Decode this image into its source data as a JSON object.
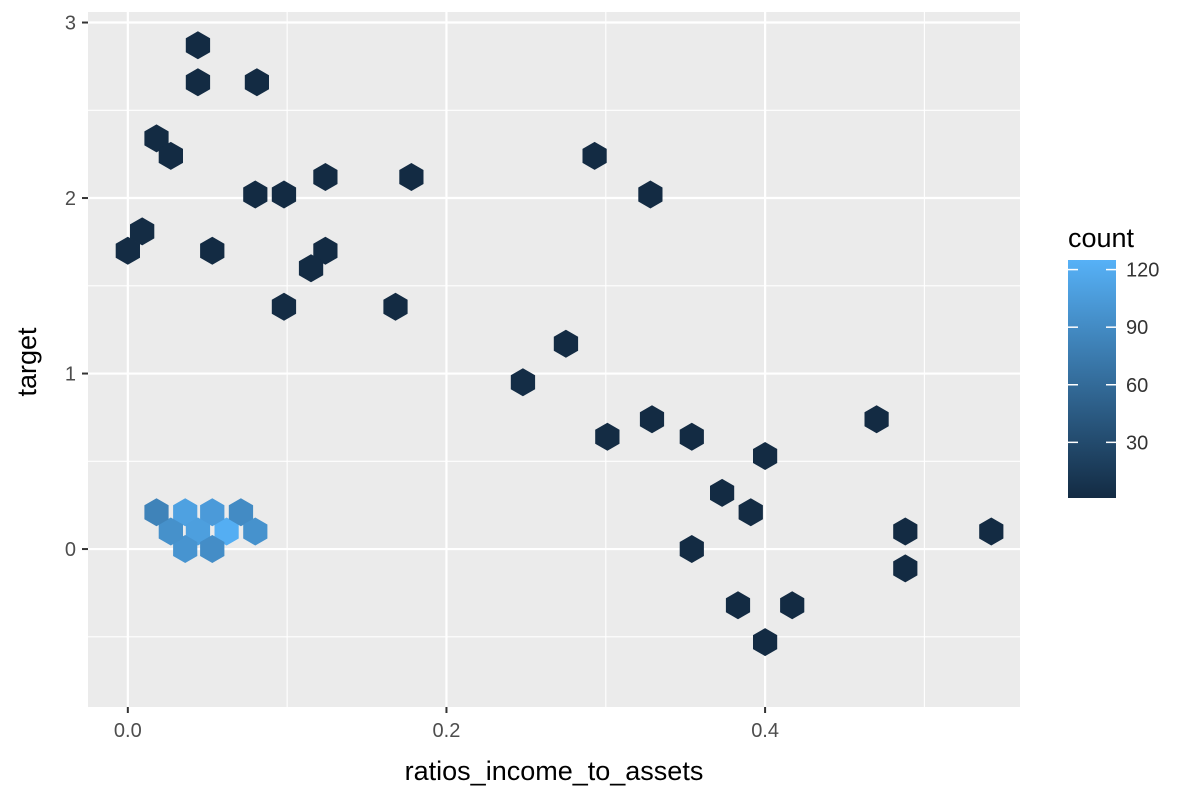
{
  "chart_data": {
    "type": "heatmap",
    "subtype": "hexbin",
    "title": "",
    "xlabel": "ratios_income_to_assets",
    "ylabel": "target",
    "xlim": [
      -0.025,
      0.56
    ],
    "ylim": [
      -0.9,
      3.06
    ],
    "x_ticks": [
      0.0,
      0.2,
      0.4
    ],
    "x_tick_labels": [
      "0.0",
      "0.2",
      "0.4"
    ],
    "y_ticks": [
      0,
      1,
      2,
      3
    ],
    "y_tick_labels": [
      "0",
      "1",
      "2",
      "3"
    ],
    "grid": true,
    "legend": {
      "title": "count",
      "position": "right",
      "breaks": [
        30,
        60,
        90,
        120
      ],
      "labels": [
        "30",
        "60",
        "90",
        "120"
      ],
      "range": [
        1,
        125
      ],
      "low_color": "#132B43",
      "high_color": "#56B1F7"
    },
    "panel_background": "#EBEBEB",
    "gridline_color": "#FFFFFF",
    "bins": [
      {
        "x": 0.044,
        "y": 2.87,
        "count": 1
      },
      {
        "x": 0.044,
        "y": 2.66,
        "count": 1
      },
      {
        "x": 0.081,
        "y": 2.66,
        "count": 1
      },
      {
        "x": 0.018,
        "y": 2.34,
        "count": 1
      },
      {
        "x": 0.027,
        "y": 2.24,
        "count": 1
      },
      {
        "x": 0.293,
        "y": 2.24,
        "count": 1
      },
      {
        "x": 0.124,
        "y": 2.12,
        "count": 1
      },
      {
        "x": 0.178,
        "y": 2.12,
        "count": 1
      },
      {
        "x": 0.08,
        "y": 2.02,
        "count": 1
      },
      {
        "x": 0.098,
        "y": 2.02,
        "count": 1
      },
      {
        "x": 0.328,
        "y": 2.02,
        "count": 1
      },
      {
        "x": 0.009,
        "y": 1.81,
        "count": 2
      },
      {
        "x": 0.0,
        "y": 1.7,
        "count": 2
      },
      {
        "x": 0.053,
        "y": 1.7,
        "count": 1
      },
      {
        "x": 0.124,
        "y": 1.7,
        "count": 1
      },
      {
        "x": 0.115,
        "y": 1.6,
        "count": 1
      },
      {
        "x": 0.168,
        "y": 1.38,
        "count": 1
      },
      {
        "x": 0.098,
        "y": 1.38,
        "count": 2
      },
      {
        "x": 0.275,
        "y": 1.17,
        "count": 1
      },
      {
        "x": 0.47,
        "y": 0.74,
        "count": 1
      },
      {
        "x": 0.4,
        "y": 0.53,
        "count": 1
      },
      {
        "x": 0.301,
        "y": 0.64,
        "count": 2
      },
      {
        "x": 0.354,
        "y": 0.64,
        "count": 1
      },
      {
        "x": 0.329,
        "y": 0.74,
        "count": 1
      },
      {
        "x": 0.248,
        "y": 0.95,
        "count": 3
      },
      {
        "x": 0.488,
        "y": 0.1,
        "count": 1
      },
      {
        "x": 0.542,
        "y": 0.1,
        "count": 1
      },
      {
        "x": 0.488,
        "y": -0.11,
        "count": 1
      },
      {
        "x": 0.417,
        "y": -0.32,
        "count": 1
      },
      {
        "x": 0.4,
        "y": -0.53,
        "count": 1
      },
      {
        "x": 0.391,
        "y": 0.21,
        "count": 2
      },
      {
        "x": 0.354,
        "y": 0.0,
        "count": 1
      },
      {
        "x": 0.373,
        "y": 0.32,
        "count": 1
      },
      {
        "x": 0.383,
        "y": -0.32,
        "count": 1
      },
      {
        "x": 0.036,
        "y": 0.21,
        "count": 110
      },
      {
        "x": 0.062,
        "y": 0.1,
        "count": 122
      },
      {
        "x": 0.053,
        "y": 0.21,
        "count": 104
      },
      {
        "x": 0.044,
        "y": 0.1,
        "count": 108
      },
      {
        "x": 0.036,
        "y": 0.0,
        "count": 98
      },
      {
        "x": 0.027,
        "y": 0.1,
        "count": 95
      },
      {
        "x": 0.053,
        "y": 0.0,
        "count": 92
      },
      {
        "x": 0.018,
        "y": 0.21,
        "count": 82
      },
      {
        "x": 0.071,
        "y": 0.21,
        "count": 90
      },
      {
        "x": 0.08,
        "y": 0.1,
        "count": 96
      }
    ]
  }
}
